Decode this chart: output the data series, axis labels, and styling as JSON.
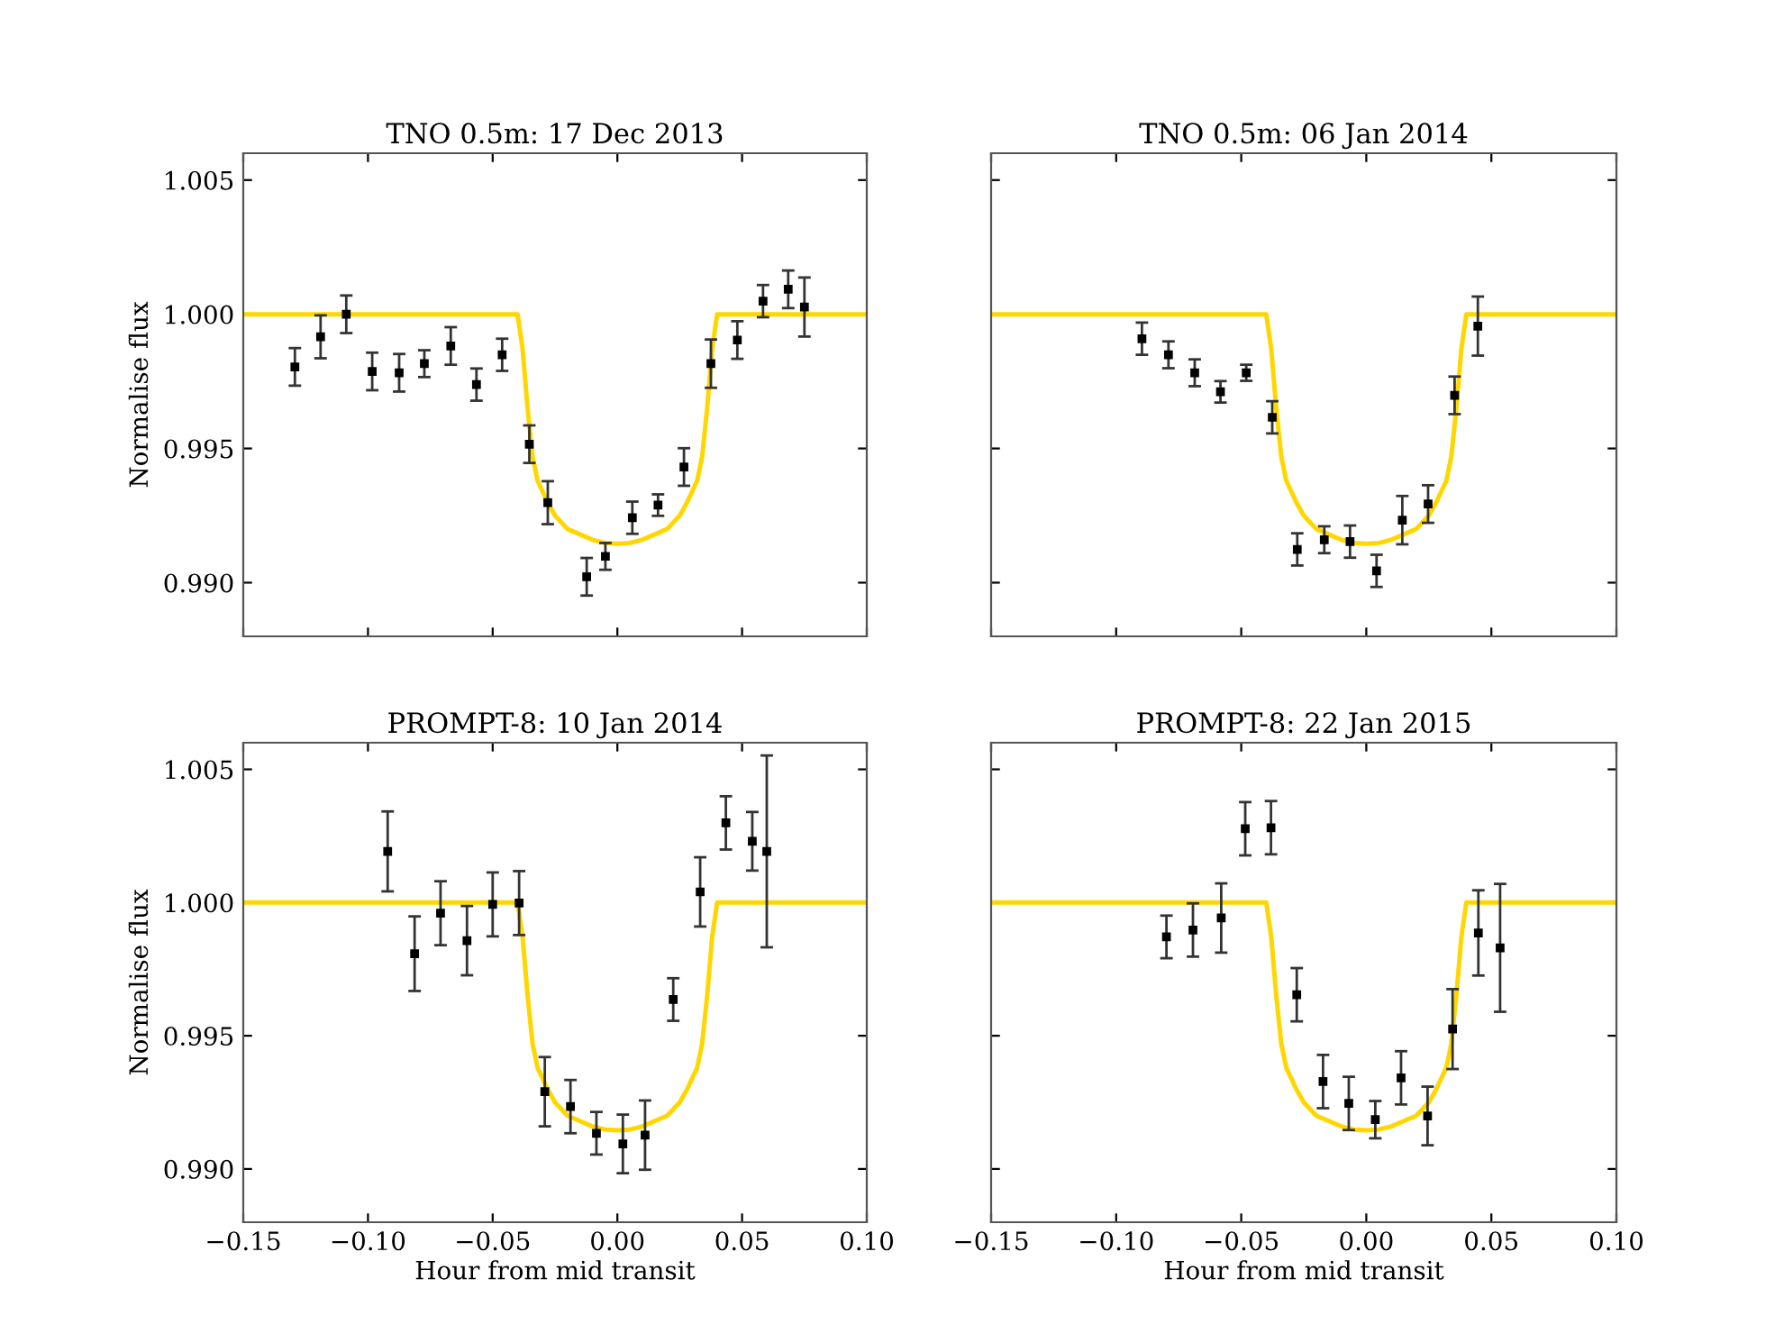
{
  "chart_data": [
    {
      "type": "scatter",
      "title": "TNO 0.5m: 17 Dec 2013",
      "ylabel": "Normalise flux",
      "xlim": [
        -0.15,
        0.1
      ],
      "ylim": [
        0.988,
        1.006
      ],
      "xticks": [
        {
          "value": -0.15,
          "label": null
        },
        {
          "value": -0.1,
          "label": null
        },
        {
          "value": -0.05,
          "label": null
        },
        {
          "value": 0,
          "label": null
        },
        {
          "value": 0.05,
          "label": null
        },
        {
          "value": 0.1,
          "label": null
        }
      ],
      "yticks": [
        {
          "value": 0.99,
          "label": "0.990"
        },
        {
          "value": 0.995,
          "label": "0.995"
        },
        {
          "value": 1.0,
          "label": "1.000"
        },
        {
          "value": 1.005,
          "label": "1.005"
        }
      ],
      "tick_labels": "y",
      "grid": false,
      "legend": false,
      "series": [
        {
          "color": "#000000",
          "marker": "square",
          "x": [
            -0.1293,
            -0.119,
            -0.1087,
            -0.0983,
            -0.0875,
            -0.0774,
            -0.0668,
            -0.0565,
            -0.0462,
            -0.0353,
            -0.0279,
            -0.0123,
            -0.0048,
            0.006,
            0.0163,
            0.0267,
            0.0375,
            0.0481,
            0.0584,
            0.0685,
            0.075
          ],
          "values": [
            0.99804,
            0.99916,
            1.0,
            0.99787,
            0.99782,
            0.99816,
            0.99882,
            0.99738,
            0.99849,
            0.99516,
            0.99298,
            0.99022,
            0.99098,
            0.99242,
            0.99289,
            0.99431,
            0.99816,
            0.99904,
            1.00049,
            1.00093,
            1.00027
          ],
          "errors": [
            0.0007,
            0.0008,
            0.0007,
            0.0007,
            0.0007,
            0.0005,
            0.0007,
            0.0006,
            0.0006,
            0.0007,
            0.0008,
            0.0007,
            0.0005,
            0.0006,
            0.0004,
            0.0007,
            0.0009,
            0.0007,
            0.0006,
            0.0007,
            0.0011
          ]
        },
        {
          "type": "line",
          "color": "#ffd700",
          "x": [
            -0.15,
            -0.04,
            -0.038,
            -0.036,
            -0.034,
            -0.032,
            -0.03,
            -0.028,
            -0.025,
            -0.02,
            -0.015,
            -0.01,
            -0.005,
            0,
            0.005,
            0.01,
            0.015,
            0.02,
            0.025,
            0.028,
            0.03,
            0.032,
            0.034,
            0.036,
            0.038,
            0.04,
            0.1
          ],
          "values": [
            1.0,
            1.0,
            0.9987,
            0.9965,
            0.9947,
            0.9938,
            0.9934,
            0.993,
            0.9925,
            0.992,
            0.9918,
            0.9916,
            0.99148,
            0.99145,
            0.99148,
            0.9916,
            0.9918,
            0.992,
            0.9925,
            0.993,
            0.9934,
            0.9938,
            0.9947,
            0.9965,
            0.9987,
            1.0,
            1.0
          ]
        }
      ]
    },
    {
      "type": "scatter",
      "title": "TNO 0.5m: 06 Jan 2014",
      "xlim": [
        -0.15,
        0.1
      ],
      "ylim": [
        0.988,
        1.006
      ],
      "xticks": [
        {
          "value": -0.15,
          "label": null
        },
        {
          "value": -0.1,
          "label": null
        },
        {
          "value": -0.05,
          "label": null
        },
        {
          "value": 0,
          "label": null
        },
        {
          "value": 0.05,
          "label": null
        },
        {
          "value": 0.1,
          "label": null
        }
      ],
      "yticks": [
        {
          "value": 0.99,
          "label": null
        },
        {
          "value": 0.995,
          "label": null
        },
        {
          "value": 1.0,
          "label": null
        },
        {
          "value": 1.005,
          "label": null
        }
      ],
      "tick_labels": false,
      "grid": false,
      "legend": false,
      "series": [
        {
          "color": "#000000",
          "marker": "square",
          "x": [
            -0.0897,
            -0.0791,
            -0.0686,
            -0.0583,
            -0.048,
            -0.0376,
            -0.0276,
            -0.0168,
            -0.0065,
            0.0041,
            0.0144,
            0.0247,
            0.0353,
            0.0446
          ],
          "values": [
            0.99909,
            0.99849,
            0.99782,
            0.99711,
            0.99782,
            0.99616,
            0.99124,
            0.9916,
            0.99153,
            0.99044,
            0.99233,
            0.99293,
            0.99698,
            0.99956
          ],
          "errors": [
            0.0006,
            0.0005,
            0.0005,
            0.0004,
            0.0003,
            0.0006,
            0.0006,
            0.0005,
            0.0006,
            0.0006,
            0.0009,
            0.0007,
            0.0007,
            0.0011
          ]
        },
        {
          "type": "line",
          "color": "#ffd700",
          "x": [
            -0.15,
            -0.04,
            -0.038,
            -0.036,
            -0.034,
            -0.032,
            -0.03,
            -0.028,
            -0.025,
            -0.02,
            -0.015,
            -0.01,
            -0.005,
            0,
            0.005,
            0.01,
            0.015,
            0.02,
            0.025,
            0.028,
            0.03,
            0.032,
            0.034,
            0.036,
            0.038,
            0.04,
            0.1
          ],
          "values": [
            1.0,
            1.0,
            0.9987,
            0.9965,
            0.9947,
            0.9938,
            0.9934,
            0.993,
            0.9925,
            0.992,
            0.9918,
            0.9916,
            0.99148,
            0.99145,
            0.99148,
            0.9916,
            0.9918,
            0.992,
            0.9925,
            0.993,
            0.9934,
            0.9938,
            0.9947,
            0.9965,
            0.9987,
            1.0,
            1.0
          ]
        }
      ]
    },
    {
      "type": "scatter",
      "title": "PROMPT-8: 10 Jan 2014",
      "xlabel": "Hour from mid transit",
      "ylabel": "Normalise flux",
      "xlim": [
        -0.15,
        0.1
      ],
      "ylim": [
        0.988,
        1.006
      ],
      "xticks": [
        {
          "value": -0.15,
          "label": "−0.15"
        },
        {
          "value": -0.1,
          "label": "−0.10"
        },
        {
          "value": -0.05,
          "label": "−0.05"
        },
        {
          "value": 0,
          "label": "0.00"
        },
        {
          "value": 0.05,
          "label": "0.05"
        },
        {
          "value": 0.1,
          "label": "0.10"
        }
      ],
      "yticks": [
        {
          "value": 0.99,
          "label": "0.990"
        },
        {
          "value": 0.995,
          "label": "0.995"
        },
        {
          "value": 1.0,
          "label": "1.000"
        },
        {
          "value": 1.005,
          "label": "1.005"
        }
      ],
      "grid": false,
      "legend": false,
      "series": [
        {
          "color": "#000000",
          "marker": "square",
          "x": [
            -0.0921,
            -0.0813,
            -0.0709,
            -0.0603,
            -0.05,
            -0.0394,
            -0.0291,
            -0.0188,
            -0.0084,
            0.0022,
            0.0111,
            0.0224,
            0.0332,
            0.0435,
            0.0541,
            0.0599
          ],
          "values": [
            1.00192,
            0.99808,
            0.9996,
            0.99857,
            0.99993,
            0.99998,
            0.9929,
            0.99234,
            0.99134,
            0.99094,
            0.99127,
            0.99636,
            1.0004,
            1.00299,
            1.0023,
            1.00192
          ],
          "errors": [
            0.0015,
            0.0014,
            0.0012,
            0.0013,
            0.0012,
            0.0012,
            0.0013,
            0.001,
            0.0008,
            0.0011,
            0.0013,
            0.0008,
            0.0013,
            0.001,
            0.0011,
            0.0036
          ]
        },
        {
          "type": "line",
          "color": "#ffd700",
          "x": [
            -0.15,
            -0.04,
            -0.038,
            -0.036,
            -0.034,
            -0.032,
            -0.03,
            -0.028,
            -0.025,
            -0.02,
            -0.015,
            -0.01,
            -0.005,
            0,
            0.005,
            0.01,
            0.015,
            0.02,
            0.025,
            0.028,
            0.03,
            0.032,
            0.034,
            0.036,
            0.038,
            0.04,
            0.1
          ],
          "values": [
            1.0,
            1.0,
            0.9987,
            0.9965,
            0.9947,
            0.9938,
            0.9934,
            0.993,
            0.9925,
            0.992,
            0.9918,
            0.9916,
            0.99148,
            0.99145,
            0.99148,
            0.9916,
            0.9918,
            0.992,
            0.9925,
            0.993,
            0.9934,
            0.9938,
            0.9947,
            0.9965,
            0.9987,
            1.0,
            1.0
          ]
        }
      ]
    },
    {
      "type": "scatter",
      "title": "PROMPT-8: 22 Jan 2015",
      "xlabel": "Hour from mid transit",
      "xlim": [
        -0.15,
        0.1
      ],
      "ylim": [
        0.988,
        1.006
      ],
      "xticks": [
        {
          "value": -0.15,
          "label": "−0.15"
        },
        {
          "value": -0.1,
          "label": "−0.10"
        },
        {
          "value": -0.05,
          "label": "−0.05"
        },
        {
          "value": 0,
          "label": "0.00"
        },
        {
          "value": 0.05,
          "label": "0.05"
        },
        {
          "value": 0.1,
          "label": "0.10"
        }
      ],
      "yticks": [
        {
          "value": 0.99,
          "label": null
        },
        {
          "value": 0.995,
          "label": null
        },
        {
          "value": 1.0,
          "label": null
        },
        {
          "value": 1.005,
          "label": null
        }
      ],
      "tick_labels": "x",
      "grid": false,
      "legend": false,
      "series": [
        {
          "color": "#000000",
          "marker": "square",
          "x": [
            -0.0799,
            -0.0693,
            -0.058,
            -0.0484,
            -0.0381,
            -0.0278,
            -0.0173,
            -0.007,
            0.0036,
            0.0139,
            0.0245,
            0.0345,
            0.0448,
            0.0535
          ],
          "values": [
            0.99871,
            0.99897,
            0.99942,
            1.00277,
            1.00281,
            0.99654,
            0.99328,
            0.99246,
            0.99185,
            0.99342,
            0.99199,
            0.99525,
            0.99886,
            0.9983
          ],
          "errors": [
            0.0008,
            0.001,
            0.0013,
            0.001,
            0.001,
            0.001,
            0.001,
            0.001,
            0.0007,
            0.001,
            0.0011,
            0.0015,
            0.0016,
            0.0024
          ]
        },
        {
          "type": "line",
          "color": "#ffd700",
          "x": [
            -0.15,
            -0.04,
            -0.038,
            -0.036,
            -0.034,
            -0.032,
            -0.03,
            -0.028,
            -0.025,
            -0.02,
            -0.015,
            -0.01,
            -0.005,
            0,
            0.005,
            0.01,
            0.015,
            0.02,
            0.025,
            0.028,
            0.03,
            0.032,
            0.034,
            0.036,
            0.038,
            0.04,
            0.1
          ],
          "values": [
            1.0,
            1.0,
            0.9987,
            0.9965,
            0.9947,
            0.9938,
            0.9934,
            0.993,
            0.9925,
            0.992,
            0.9918,
            0.9916,
            0.99148,
            0.99145,
            0.99148,
            0.9916,
            0.9918,
            0.992,
            0.9925,
            0.993,
            0.9934,
            0.9938,
            0.9947,
            0.9965,
            0.9987,
            1.0,
            1.0
          ]
        }
      ]
    }
  ]
}
